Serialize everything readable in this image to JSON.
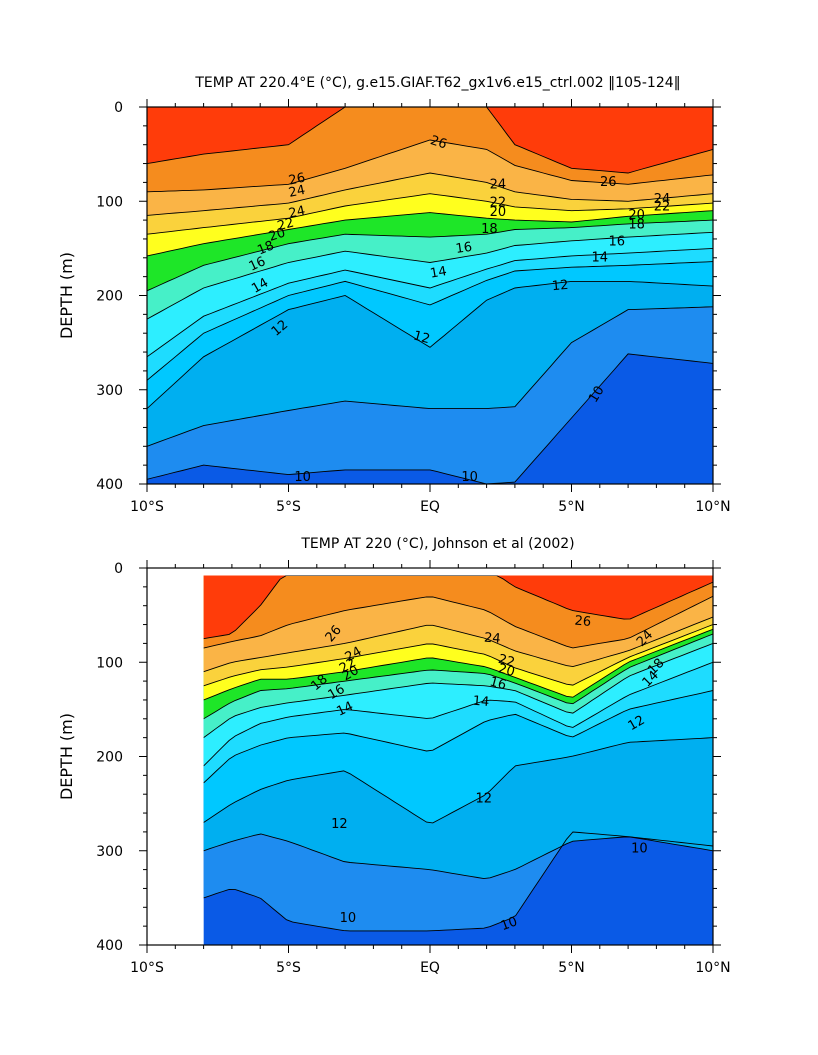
{
  "chart_data": [
    {
      "type": "contour",
      "title": "TEMP AT 220.4°E (°C), g.e15.GIAF.T62_gx1v6.e15_ctrl.002 ‖105-124‖",
      "xlabel": "",
      "ylabel": "DEPTH (m)",
      "x_tick_labels": [
        "10°S",
        "5°S",
        "EQ",
        "5°N",
        "10°N"
      ],
      "x_ticks": [
        -10,
        -5,
        0,
        5,
        10
      ],
      "xlim": [
        -10,
        10
      ],
      "y_tick_labels": [
        "0",
        "100",
        "200",
        "300",
        "400"
      ],
      "y_ticks": [
        0,
        100,
        200,
        300,
        400
      ],
      "ylim": [
        0,
        400
      ],
      "y_inverted": true,
      "data_xmin": -10,
      "contour_step_C": 1,
      "fill_levels": [
        {
          "min": 27,
          "color": "#ff3c0a"
        },
        {
          "min": 26,
          "color": "#f58c1e"
        },
        {
          "min": 24,
          "color": "#fab446"
        },
        {
          "min": 22,
          "color": "#fad23c"
        },
        {
          "min": 20,
          "color": "#ffff1e"
        },
        {
          "min": 19,
          "color": "#a0f050"
        },
        {
          "min": 18,
          "color": "#1ee628"
        },
        {
          "min": 16,
          "color": "#46f0c8"
        },
        {
          "min": 14,
          "color": "#2deeff"
        },
        {
          "min": 13,
          "color": "#1edcff"
        },
        {
          "min": 12,
          "color": "#00c8ff"
        },
        {
          "min": 11,
          "color": "#00aff0"
        },
        {
          "min": 10,
          "color": "#1e8cf0"
        },
        {
          "min": -99,
          "color": "#0a5ae6"
        }
      ],
      "isotherms": [
        {
          "level": 27,
          "x": [
            -10,
            -8,
            -5,
            -3,
            0,
            2,
            3,
            5,
            7,
            10
          ],
          "depth": [
            60,
            50,
            40,
            0,
            0,
            0,
            40,
            65,
            70,
            45
          ]
        },
        {
          "level": 26,
          "x": [
            -10,
            -8,
            -5,
            -3,
            0,
            2,
            3,
            5,
            7,
            10
          ],
          "depth": [
            90,
            88,
            82,
            65,
            35,
            45,
            62,
            78,
            82,
            72
          ]
        },
        {
          "level": 24,
          "x": [
            -10,
            -8,
            -5,
            -3,
            0,
            2,
            3,
            5,
            7,
            10
          ],
          "depth": [
            115,
            110,
            102,
            88,
            70,
            80,
            90,
            98,
            100,
            92
          ]
        },
        {
          "level": 22,
          "x": [
            -10,
            -8,
            -5,
            -3,
            0,
            2,
            3,
            5,
            7,
            10
          ],
          "depth": [
            135,
            128,
            118,
            105,
            92,
            100,
            106,
            110,
            108,
            102
          ]
        },
        {
          "level": 20,
          "x": [
            -10,
            -8,
            -5,
            -3,
            0,
            2,
            3,
            5,
            7,
            10
          ],
          "depth": [
            158,
            145,
            130,
            120,
            112,
            118,
            120,
            122,
            116,
            110
          ]
        },
        {
          "level": 18,
          "x": [
            -10,
            -8,
            -5,
            -3,
            0,
            2,
            3,
            5,
            7,
            10
          ],
          "depth": [
            195,
            168,
            145,
            135,
            138,
            135,
            130,
            128,
            124,
            120
          ]
        },
        {
          "level": 16,
          "x": [
            -10,
            -8,
            -5,
            -3,
            0,
            2,
            3,
            5,
            7,
            10
          ],
          "depth": [
            225,
            192,
            165,
            153,
            165,
            155,
            147,
            142,
            138,
            133
          ]
        },
        {
          "level": 14,
          "x": [
            -10,
            -8,
            -5,
            -3,
            0,
            2,
            3,
            5,
            7,
            10
          ],
          "depth": [
            265,
            222,
            187,
            173,
            192,
            172,
            163,
            158,
            155,
            150
          ]
        },
        {
          "level": 13,
          "x": [
            -10,
            -8,
            -5,
            -3,
            0,
            2,
            3,
            5,
            7,
            10
          ],
          "depth": [
            290,
            240,
            200,
            185,
            210,
            184,
            174,
            170,
            168,
            164
          ]
        },
        {
          "level": 12,
          "x": [
            -10,
            -8,
            -5,
            -3,
            0,
            2,
            3,
            5,
            7,
            10
          ],
          "depth": [
            320,
            265,
            215,
            200,
            255,
            205,
            192,
            185,
            185,
            190
          ]
        },
        {
          "level": 11,
          "x": [
            -10,
            -8,
            -5,
            -3,
            0,
            2,
            3,
            5,
            7,
            10
          ],
          "depth": [
            360,
            338,
            322,
            312,
            320,
            320,
            318,
            250,
            215,
            212
          ]
        },
        {
          "level": 10,
          "x": [
            -10,
            -8,
            -5,
            -3,
            0,
            2,
            3,
            5,
            7,
            10
          ],
          "depth": [
            395,
            380,
            390,
            385,
            385,
            400,
            398,
            330,
            262,
            272
          ]
        }
      ],
      "labels": [
        {
          "text": "26",
          "x": 0.3,
          "depth": 38,
          "angle": 18
        },
        {
          "text": "24",
          "x": -4.7,
          "depth": 90,
          "angle": -12
        },
        {
          "text": "26",
          "x": -4.7,
          "depth": 77,
          "angle": -12
        },
        {
          "text": "24",
          "x": -4.7,
          "depth": 112,
          "angle": -12
        },
        {
          "text": "22",
          "x": -5.1,
          "depth": 125,
          "angle": -15
        },
        {
          "text": "20",
          "x": -5.4,
          "depth": 136,
          "angle": -18
        },
        {
          "text": "18",
          "x": -5.8,
          "depth": 150,
          "angle": -22
        },
        {
          "text": "16",
          "x": -6.1,
          "depth": 167,
          "angle": -25
        },
        {
          "text": "14",
          "x": -6.0,
          "depth": 190,
          "angle": -30
        },
        {
          "text": "12",
          "x": -5.3,
          "depth": 235,
          "angle": -40
        },
        {
          "text": "24",
          "x": 2.4,
          "depth": 83,
          "angle": 0
        },
        {
          "text": "22",
          "x": 2.4,
          "depth": 102,
          "angle": 0
        },
        {
          "text": "20",
          "x": 2.4,
          "depth": 112,
          "angle": 0
        },
        {
          "text": "18",
          "x": 2.1,
          "depth": 130,
          "angle": 0
        },
        {
          "text": "16",
          "x": 1.2,
          "depth": 150,
          "angle": -8
        },
        {
          "text": "14",
          "x": 0.3,
          "depth": 176,
          "angle": -10
        },
        {
          "text": "12",
          "x": 4.6,
          "depth": 190,
          "angle": -5
        },
        {
          "text": "12",
          "x": -0.3,
          "depth": 245,
          "angle": 15
        },
        {
          "text": "26",
          "x": 6.3,
          "depth": 80,
          "angle": 0
        },
        {
          "text": "24",
          "x": 8.2,
          "depth": 98,
          "angle": 0
        },
        {
          "text": "22",
          "x": 8.2,
          "depth": 106,
          "angle": 0
        },
        {
          "text": "20",
          "x": 7.3,
          "depth": 115,
          "angle": 0
        },
        {
          "text": "18",
          "x": 7.3,
          "depth": 125,
          "angle": 0
        },
        {
          "text": "16",
          "x": 6.6,
          "depth": 143,
          "angle": 0
        },
        {
          "text": "14",
          "x": 6.0,
          "depth": 160,
          "angle": 0
        },
        {
          "text": "10",
          "x": 5.9,
          "depth": 305,
          "angle": -58
        },
        {
          "text": "10",
          "x": -4.5,
          "depth": 393,
          "angle": 0
        },
        {
          "text": "10",
          "x": 1.4,
          "depth": 393,
          "angle": 0
        }
      ]
    },
    {
      "type": "contour",
      "title": "TEMP AT 220 (°C), Johnson et al (2002)",
      "xlabel": "",
      "ylabel": "DEPTH (m)",
      "x_tick_labels": [
        "10°S",
        "5°S",
        "EQ",
        "5°N",
        "10°N"
      ],
      "x_ticks": [
        -10,
        -5,
        0,
        5,
        10
      ],
      "xlim": [
        -10,
        10
      ],
      "y_tick_labels": [
        "0",
        "100",
        "200",
        "300",
        "400"
      ],
      "y_ticks": [
        0,
        100,
        200,
        300,
        400
      ],
      "ylim": [
        0,
        400
      ],
      "y_inverted": true,
      "data_xmin": -8,
      "data_ymin": 8,
      "contour_step_C": 1,
      "fill_levels": [
        {
          "min": 27,
          "color": "#ff3c0a"
        },
        {
          "min": 26,
          "color": "#f58c1e"
        },
        {
          "min": 24,
          "color": "#fab446"
        },
        {
          "min": 22,
          "color": "#fad23c"
        },
        {
          "min": 20,
          "color": "#ffff1e"
        },
        {
          "min": 19,
          "color": "#a0f050"
        },
        {
          "min": 18,
          "color": "#1ee628"
        },
        {
          "min": 16,
          "color": "#46f0c8"
        },
        {
          "min": 14,
          "color": "#2deeff"
        },
        {
          "min": 13,
          "color": "#1edcff"
        },
        {
          "min": 12,
          "color": "#00c8ff"
        },
        {
          "min": 11,
          "color": "#00aff0"
        },
        {
          "min": 10,
          "color": "#1e8cf0"
        },
        {
          "min": -99,
          "color": "#0a5ae6"
        }
      ],
      "isotherms": [
        {
          "level": 27,
          "x": [
            -8,
            -7,
            -6,
            -5,
            -3,
            0,
            2,
            3,
            5,
            7,
            10
          ],
          "depth": [
            75,
            70,
            40,
            0,
            0,
            0,
            0,
            20,
            45,
            55,
            15
          ]
        },
        {
          "level": 26,
          "x": [
            -8,
            -7,
            -6,
            -5,
            -3,
            0,
            2,
            3,
            5,
            7,
            10
          ],
          "depth": [
            85,
            78,
            72,
            60,
            45,
            30,
            45,
            62,
            85,
            75,
            30
          ]
        },
        {
          "level": 24,
          "x": [
            -8,
            -7,
            -6,
            -5,
            -3,
            0,
            2,
            3,
            5,
            7,
            10
          ],
          "depth": [
            110,
            100,
            95,
            90,
            80,
            60,
            75,
            88,
            105,
            88,
            52
          ]
        },
        {
          "level": 22,
          "x": [
            -8,
            -7,
            -6,
            -5,
            -3,
            0,
            2,
            3,
            5,
            7,
            10
          ],
          "depth": [
            125,
            115,
            108,
            105,
            96,
            80,
            92,
            106,
            125,
            95,
            60
          ]
        },
        {
          "level": 20,
          "x": [
            -8,
            -7,
            -6,
            -5,
            -3,
            0,
            2,
            3,
            5,
            7,
            10
          ],
          "depth": [
            140,
            128,
            118,
            118,
            110,
            95,
            105,
            116,
            138,
            100,
            65
          ]
        },
        {
          "level": 18,
          "x": [
            -8,
            -7,
            -6,
            -5,
            -3,
            0,
            2,
            3,
            5,
            7,
            10
          ],
          "depth": [
            160,
            142,
            130,
            128,
            120,
            108,
            112,
            122,
            145,
            106,
            70
          ]
        },
        {
          "level": 16,
          "x": [
            -8,
            -7,
            -6,
            -5,
            -3,
            0,
            2,
            3,
            5,
            7,
            10
          ],
          "depth": [
            180,
            158,
            148,
            143,
            135,
            122,
            125,
            130,
            155,
            115,
            80
          ]
        },
        {
          "level": 14,
          "x": [
            -8,
            -7,
            -6,
            -5,
            -3,
            0,
            2,
            3,
            5,
            7,
            10
          ],
          "depth": [
            210,
            180,
            165,
            158,
            150,
            160,
            140,
            142,
            170,
            135,
            100
          ]
        },
        {
          "level": 13,
          "x": [
            -8,
            -7,
            -6,
            -5,
            -3,
            0,
            2,
            3,
            5,
            7,
            10
          ],
          "depth": [
            228,
            200,
            188,
            180,
            175,
            195,
            162,
            155,
            180,
            150,
            130
          ]
        },
        {
          "level": 12,
          "x": [
            -8,
            -7,
            -6,
            -5,
            -3,
            0,
            2,
            3,
            5,
            7,
            10
          ],
          "depth": [
            270,
            250,
            235,
            225,
            215,
            272,
            240,
            210,
            200,
            185,
            180
          ]
        },
        {
          "level": 11,
          "x": [
            -8,
            -7,
            -6,
            -5,
            -3,
            0,
            2,
            3,
            5,
            7,
            10
          ],
          "depth": [
            300,
            290,
            282,
            290,
            312,
            320,
            330,
            320,
            290,
            285,
            300
          ]
        },
        {
          "level": 10,
          "x": [
            -8,
            -7,
            -6,
            -5,
            -3,
            0,
            2,
            3,
            5,
            7,
            10
          ],
          "depth": [
            350,
            340,
            350,
            375,
            385,
            385,
            382,
            370,
            280,
            285,
            295
          ]
        }
      ],
      "labels": [
        {
          "text": "26",
          "x": -3.4,
          "depth": 70,
          "angle": -50
        },
        {
          "text": "24",
          "x": -2.7,
          "depth": 92,
          "angle": -30
        },
        {
          "text": "22",
          "x": -2.9,
          "depth": 104,
          "angle": -30
        },
        {
          "text": "20",
          "x": -2.8,
          "depth": 112,
          "angle": -30
        },
        {
          "text": "18",
          "x": -3.9,
          "depth": 122,
          "angle": -40
        },
        {
          "text": "16",
          "x": -3.3,
          "depth": 132,
          "angle": -30
        },
        {
          "text": "14",
          "x": -3.0,
          "depth": 150,
          "angle": -25
        },
        {
          "text": "12",
          "x": -3.2,
          "depth": 272,
          "angle": 0
        },
        {
          "text": "24",
          "x": 2.2,
          "depth": 75,
          "angle": 5
        },
        {
          "text": "22",
          "x": 2.7,
          "depth": 99,
          "angle": 15
        },
        {
          "text": "20",
          "x": 2.7,
          "depth": 109,
          "angle": 15
        },
        {
          "text": "16",
          "x": 2.4,
          "depth": 123,
          "angle": 15
        },
        {
          "text": "14",
          "x": 1.8,
          "depth": 142,
          "angle": 5
        },
        {
          "text": "12",
          "x": 1.9,
          "depth": 245,
          "angle": 0
        },
        {
          "text": "10",
          "x": 2.8,
          "depth": 378,
          "angle": -20
        },
        {
          "text": "10",
          "x": -2.9,
          "depth": 372,
          "angle": 0
        },
        {
          "text": "26",
          "x": 5.4,
          "depth": 57,
          "angle": 5
        },
        {
          "text": "12",
          "x": 7.3,
          "depth": 165,
          "angle": -30
        },
        {
          "text": "14",
          "x": 7.8,
          "depth": 118,
          "angle": -45
        },
        {
          "text": "10",
          "x": 7.4,
          "depth": 298,
          "angle": 0
        },
        {
          "text": "24",
          "x": 7.6,
          "depth": 75,
          "angle": -45
        },
        {
          "text": "18",
          "x": 8.0,
          "depth": 105,
          "angle": -45
        }
      ]
    }
  ]
}
